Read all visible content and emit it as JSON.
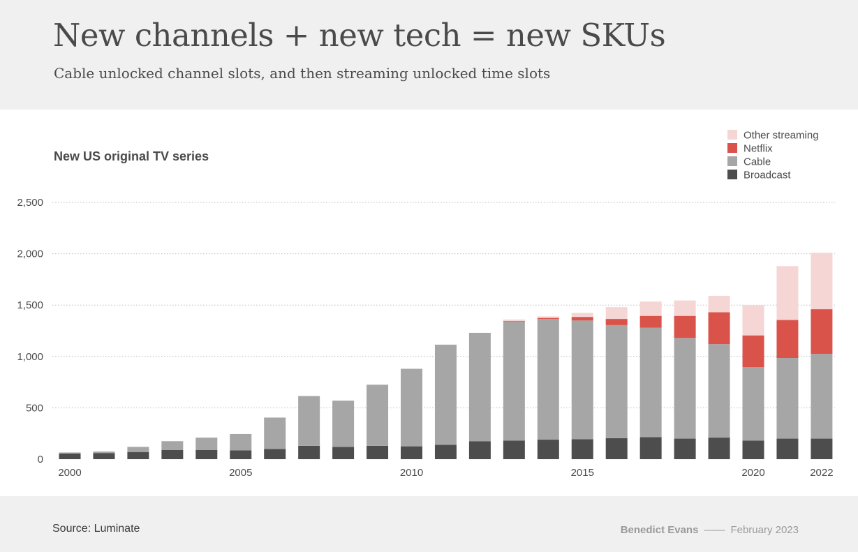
{
  "header": {
    "title": "New channels + new tech = new SKUs",
    "subtitle": "Cable unlocked channel slots, and then streaming unlocked time slots"
  },
  "footer": {
    "source": "Source: Luminate",
    "author": "Benedict Evans",
    "separator": "——",
    "date": "February 2023"
  },
  "colors": {
    "header_bg": "#f0f0f0",
    "broadcast": "#4d4d4d",
    "cable": "#a6a6a6",
    "netflix": "#d9534a",
    "other_streaming": "#f5d6d4",
    "grid": "#bdbdbd"
  },
  "chart_data": {
    "type": "bar",
    "stacked": true,
    "title": "New US original TV series",
    "categories": [
      "2000",
      "2001",
      "2002",
      "2003",
      "2004",
      "2005",
      "2006",
      "2007",
      "2008",
      "2009",
      "2010",
      "2011",
      "2012",
      "2013",
      "2014",
      "2015",
      "2016",
      "2017",
      "2018",
      "2019",
      "2020",
      "2021",
      "2022"
    ],
    "x_tick_labels": [
      "2000",
      "2005",
      "2010",
      "2015",
      "2020",
      "2022"
    ],
    "y_ticks": [
      0,
      500,
      1000,
      1500,
      2000,
      2500
    ],
    "y_tick_labels": [
      "0",
      "500",
      "1,000",
      "1,500",
      "2,000",
      "2,500"
    ],
    "ylim": [
      0,
      2500
    ],
    "grid": true,
    "legend_position": "top-right",
    "series": [
      {
        "name": "Broadcast",
        "color": "#4d4d4d",
        "values": [
          55,
          60,
          70,
          90,
          90,
          85,
          100,
          130,
          120,
          130,
          125,
          140,
          175,
          180,
          190,
          195,
          205,
          215,
          200,
          210,
          180,
          200,
          200
        ]
      },
      {
        "name": "Cable",
        "color": "#a6a6a6",
        "values": [
          10,
          15,
          50,
          85,
          120,
          160,
          305,
          485,
          450,
          595,
          755,
          975,
          1055,
          1160,
          1175,
          1155,
          1100,
          1065,
          980,
          910,
          715,
          785,
          825
        ]
      },
      {
        "name": "Netflix",
        "color": "#d9534a",
        "values": [
          0,
          0,
          0,
          0,
          0,
          0,
          0,
          0,
          0,
          0,
          0,
          0,
          0,
          5,
          10,
          35,
          60,
          115,
          215,
          310,
          310,
          370,
          435
        ]
      },
      {
        "name": "Other streaming",
        "color": "#f5d6d4",
        "values": [
          0,
          0,
          0,
          0,
          0,
          0,
          0,
          0,
          0,
          0,
          0,
          0,
          0,
          15,
          15,
          40,
          115,
          140,
          150,
          160,
          295,
          525,
          550
        ]
      }
    ],
    "legend_order": [
      "Other streaming",
      "Netflix",
      "Cable",
      "Broadcast"
    ]
  }
}
